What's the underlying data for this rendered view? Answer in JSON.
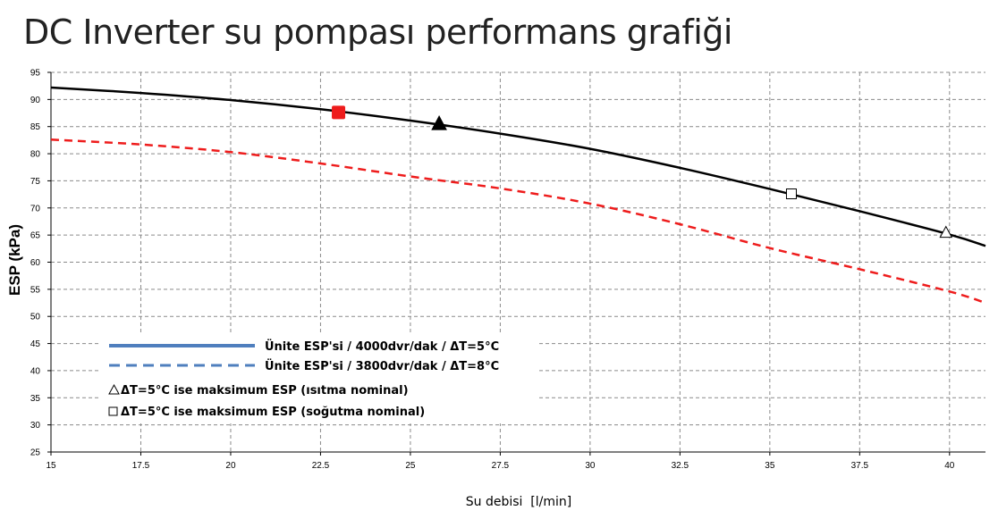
{
  "chart_data": {
    "type": "line",
    "title": "DC Inverter su pompası performans grafiği",
    "xlabel": "Su debisi  [l/min]",
    "ylabel": "ESP (kPa)",
    "xlim": [
      15,
      41
    ],
    "ylim": [
      25,
      95
    ],
    "x_ticks": [
      "15",
      "17.5",
      "20",
      "22.5",
      "25",
      "27.5",
      "30",
      "32.5",
      "35",
      "37.5",
      "40"
    ],
    "y_ticks": [
      "25",
      "30",
      "35",
      "40",
      "45",
      "50",
      "55",
      "60",
      "65",
      "70",
      "75",
      "80",
      "85",
      "90",
      "95"
    ],
    "grid": true,
    "series": [
      {
        "name": "Ünite ESP'si / 4000dvr/dak / ΔT=5°C",
        "style": "solid",
        "color": "#000000",
        "points": [
          [
            15,
            92.2
          ],
          [
            17.5,
            91.2
          ],
          [
            20,
            89.9
          ],
          [
            22.5,
            88.2
          ],
          [
            25,
            86.1
          ],
          [
            27.5,
            83.7
          ],
          [
            30,
            80.9
          ],
          [
            32.5,
            77.4
          ],
          [
            35,
            73.5
          ],
          [
            37.5,
            69.4
          ],
          [
            40,
            65.1
          ],
          [
            41,
            63.0
          ]
        ]
      },
      {
        "name": "Ünite ESP'si / 3800dvr/dak / ΔT=8°C",
        "style": "dashed",
        "color": "#ee1c1c",
        "points": [
          [
            15,
            82.6
          ],
          [
            17.5,
            81.7
          ],
          [
            20,
            80.3
          ],
          [
            22.5,
            78.2
          ],
          [
            25,
            75.8
          ],
          [
            27.5,
            73.6
          ],
          [
            30,
            70.8
          ],
          [
            32.5,
            67.0
          ],
          [
            35,
            62.6
          ],
          [
            37.5,
            58.7
          ],
          [
            40,
            54.6
          ],
          [
            41,
            52.5
          ]
        ]
      }
    ],
    "markers": [
      {
        "shape": "square",
        "fill": "#ee1c1c",
        "size": "large",
        "x": 23.0,
        "y": 87.6
      },
      {
        "shape": "triangle",
        "fill": "#000000",
        "size": "large",
        "x": 25.8,
        "y": 85.6
      },
      {
        "shape": "square",
        "fill": "#ffffff",
        "size": "small",
        "x": 35.6,
        "y": 72.6
      },
      {
        "shape": "triangle",
        "fill": "#ffffff",
        "size": "small",
        "x": 39.9,
        "y": 65.5
      }
    ],
    "legend": {
      "placement": "bottom-left",
      "entries": [
        {
          "label": "Ünite ESP'si / 4000dvr/dak / ΔT=5°C",
          "symbol": "solid-line",
          "color": "#4f7fbe"
        },
        {
          "label": "Ünite ESP'si / 3800dvr/dak / ΔT=8°C",
          "symbol": "dashed-line",
          "color": "#4f7fbe"
        },
        {
          "label": "ΔT=5°C ise maksimum ESP (ısıtma nominal)",
          "symbol": "triangle-outline-icon",
          "color": "#000000"
        },
        {
          "label": "ΔT=5°C ise maksimum ESP (soğutma nominal)",
          "symbol": "square-outline-icon",
          "color": "#000000"
        }
      ]
    }
  }
}
